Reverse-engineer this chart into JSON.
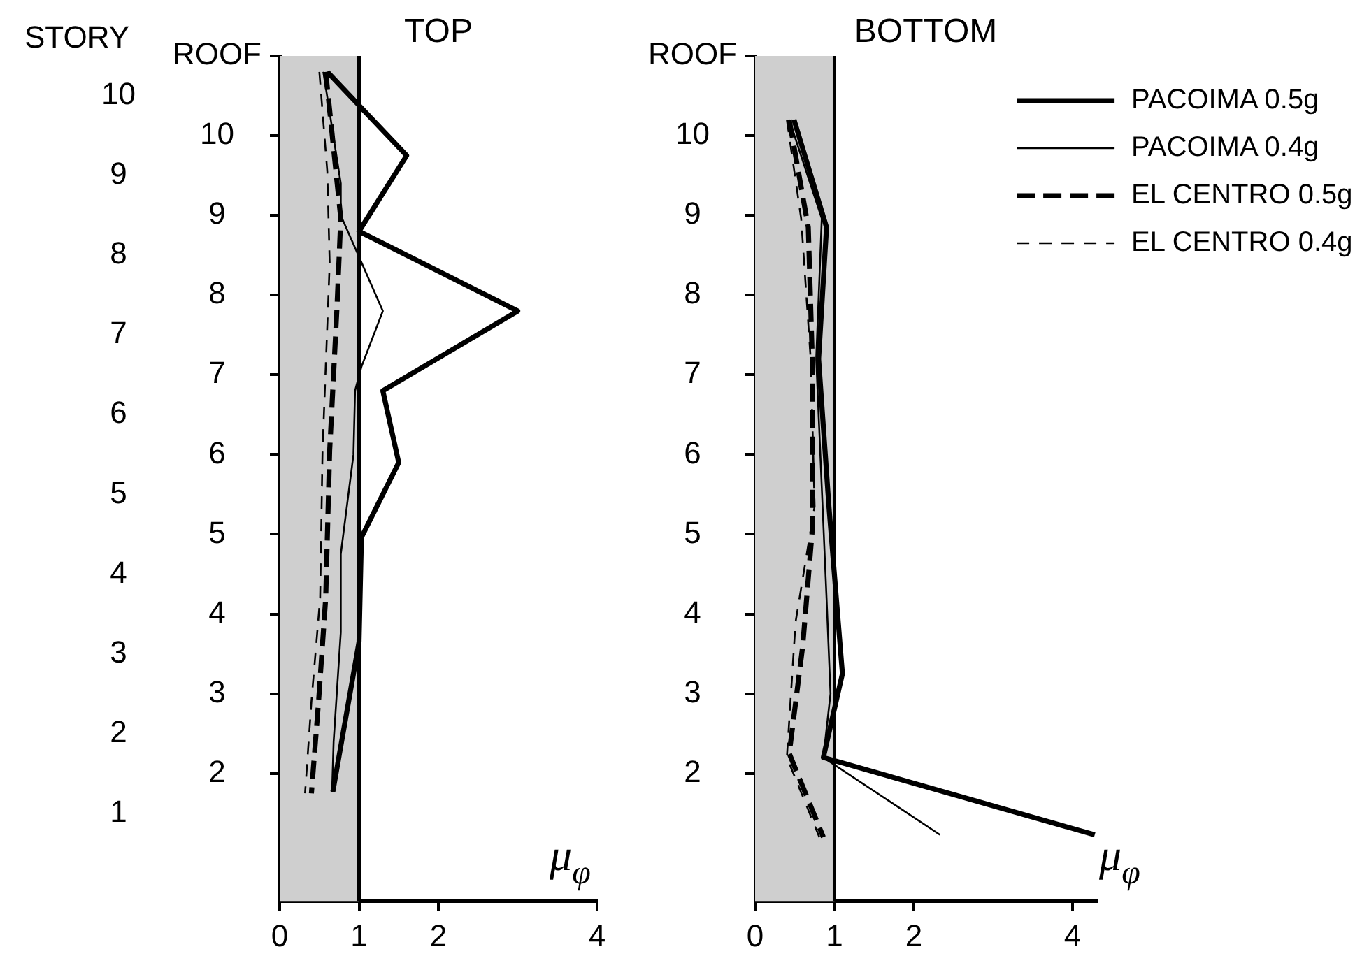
{
  "chart_data": [
    {
      "type": "line",
      "title": "TOP",
      "xlabel": "μ$_{φ}$",
      "y2label": "STORY",
      "xlim": [
        0,
        4
      ],
      "xticks": [
        0,
        1,
        2,
        4
      ],
      "ylim": [
        0.4,
        11
      ],
      "yticks": [
        2,
        3,
        4,
        5,
        6,
        7,
        8,
        9,
        10,
        {
          "value": 11,
          "label": "ROOF"
        }
      ],
      "y2lim": [
        0.4,
        11
      ],
      "y2ticks": [
        {
          "value": 1.5,
          "label": "1"
        },
        {
          "value": 2.5,
          "label": "2"
        },
        {
          "value": 3.5,
          "label": "3"
        },
        {
          "value": 4.5,
          "label": "4"
        },
        {
          "value": 5.5,
          "label": "5"
        },
        {
          "value": 6.5,
          "label": "6"
        },
        {
          "value": 7.5,
          "label": "7"
        },
        {
          "value": 8.5,
          "label": "8"
        },
        {
          "value": 9.5,
          "label": "9"
        },
        {
          "value": 10.5,
          "label": "10"
        }
      ],
      "bands": [
        {
          "axis": "x",
          "from": 0,
          "to": 1,
          "color": "#cfcfcf"
        }
      ],
      "series": [
        {
          "color": "#000000",
          "line_style": "solid",
          "x": [
            0.6,
            1.6,
            1.0,
            3.0,
            1.3,
            1.5,
            1.03,
            1.0,
            0.67
          ],
          "values": [
            10.8,
            9.75,
            8.8,
            7.8,
            6.8,
            5.9,
            4.96,
            3.65,
            1.77
          ]
        },
        {
          "color": "#000000",
          "line_style": "solid",
          "x": [
            0.55,
            0.77,
            0.77,
            1.3,
            1.03,
            0.95,
            0.93,
            0.77,
            0.77,
            0.68,
            0.66
          ],
          "values": [
            10.8,
            9.4,
            9.0,
            7.8,
            7.1,
            6.8,
            6.0,
            4.75,
            3.77,
            2.4,
            1.77
          ]
        },
        {
          "color": "#000000",
          "line_style": "dashed",
          "x": [
            0.58,
            0.77,
            0.72,
            0.63,
            0.58,
            0.49,
            0.4
          ],
          "values": [
            10.8,
            8.96,
            7.8,
            6.05,
            4.2,
            2.9,
            1.75
          ]
        },
        {
          "color": "#000000",
          "line_style": "dashed",
          "x": [
            0.5,
            0.6,
            0.63,
            0.54,
            0.51,
            0.4,
            0.32
          ],
          "values": [
            10.8,
            9.55,
            8.4,
            6.05,
            4.2,
            2.9,
            1.75
          ]
        }
      ]
    },
    {
      "type": "line",
      "title": "BOTTOM",
      "xlabel": "μ$_{φ}$",
      "legend": "top right",
      "xlim": [
        0,
        4.3
      ],
      "xticks": [
        0,
        1,
        2,
        4
      ],
      "ylim": [
        0.4,
        11
      ],
      "yticks": [
        2,
        3,
        4,
        5,
        6,
        7,
        8,
        9,
        10,
        {
          "value": 11,
          "label": "ROOF"
        }
      ],
      "bands": [
        {
          "axis": "x",
          "from": 0,
          "to": 1,
          "color": "#cfcfcf"
        }
      ],
      "series": [
        {
          "name": "PACOIMA 0.5g",
          "color": "#000000",
          "line_style": "solid",
          "x": [
            0.49,
            0.9,
            0.8,
            0.93,
            1.1,
            0.86,
            4.28
          ],
          "values": [
            10.2,
            8.85,
            7.2,
            5.35,
            3.25,
            2.2,
            1.23
          ]
        },
        {
          "name": "PACOIMA 0.4g",
          "color": "#000000",
          "line_style": "solid",
          "x": [
            0.43,
            0.84,
            0.77,
            0.9,
            0.95,
            0.86,
            2.33
          ],
          "values": [
            10.2,
            8.96,
            7.2,
            4.2,
            3.0,
            2.2,
            1.23
          ]
        },
        {
          "name": "EL CENTRO 0.5g",
          "color": "#000000",
          "line_style": "dashed",
          "x": [
            0.43,
            0.67,
            0.72,
            0.72,
            0.6,
            0.43,
            0.86
          ],
          "values": [
            10.2,
            8.85,
            7.2,
            5.05,
            3.6,
            2.25,
            1.2
          ]
        },
        {
          "name": "EL CENTRO 0.4g",
          "color": "#000000",
          "line_style": "dashed",
          "x": [
            0.4,
            0.58,
            0.7,
            0.75,
            0.51,
            0.4,
            0.81
          ],
          "values": [
            10.2,
            8.96,
            7.2,
            5.35,
            3.9,
            2.2,
            1.2
          ]
        }
      ]
    }
  ]
}
